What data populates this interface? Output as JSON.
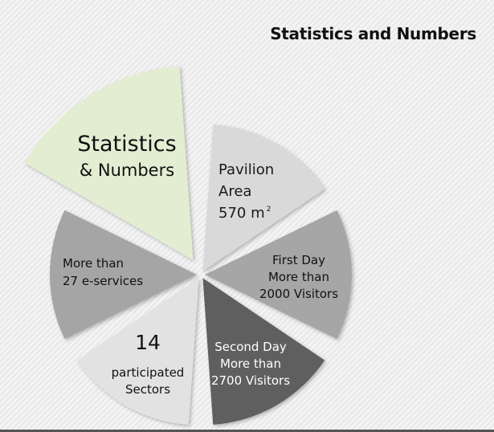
{
  "header": {
    "title": "Statistics and Numbers"
  },
  "segments": [
    {
      "id": "stats",
      "lines": [
        "Statistics",
        "& Numbers"
      ],
      "fill": "#e3edd2",
      "text_color": "#111111"
    },
    {
      "id": "pavilion",
      "lines": [
        "Pavilion",
        "Area",
        "570 m"
      ],
      "superscript": "2",
      "fill": "#d9d9d9",
      "text_color": "#1a1a1a"
    },
    {
      "id": "first-day",
      "lines": [
        "First Day",
        "More than",
        "2000 Visitors"
      ],
      "fill": "#a6a6a6",
      "text_color": "#111111"
    },
    {
      "id": "second-day",
      "lines": [
        "Second Day",
        "More than",
        "2700 Visitors"
      ],
      "fill": "#5f5f5f",
      "text_color": "#ffffff"
    },
    {
      "id": "sectors",
      "lines": [
        "14",
        "participated",
        "Sectors"
      ],
      "fill": "#e2e2e2",
      "text_color": "#111111"
    },
    {
      "id": "e-services",
      "lines": [
        "More than",
        "27 e-services"
      ],
      "fill": "#a5a5a5",
      "text_color": "#111111"
    }
  ]
}
